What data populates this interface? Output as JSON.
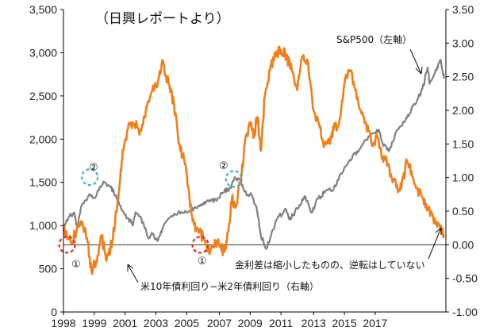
{
  "chart_data": {
    "type": "line",
    "source_note": "（日興レポートより）",
    "x_ticks": [
      "1998",
      "1999",
      "2001",
      "2003",
      "2005",
      "2007",
      "2009",
      "2011",
      "2013",
      "2015",
      "2017"
    ],
    "x_tick_years": [
      1998,
      1999.7,
      2001.4,
      2003.1,
      2004.8,
      2006.6,
      2008.3,
      2010.0,
      2011.8,
      2013.5,
      2015.2
    ],
    "left_axis": {
      "min": 0,
      "max": 3500,
      "ticks": [
        "0",
        "500",
        "1,000",
        "1,500",
        "2,000",
        "2,500",
        "3,000",
        "3,500"
      ]
    },
    "right_axis": {
      "min": -1.0,
      "max": 3.5,
      "ticks": [
        "-1.00",
        "-0.50",
        "0.00",
        "0.50",
        "1.00",
        "1.50",
        "2.00",
        "2.50",
        "3.00",
        "3.50"
      ]
    },
    "x_range": [
      1998,
      2019.1
    ],
    "series": [
      {
        "name": "S&P500（左軸）",
        "axis": "left",
        "color": "#808080",
        "points": [
          [
            1998.0,
            960
          ],
          [
            1998.3,
            1100
          ],
          [
            1998.6,
            1150
          ],
          [
            1998.75,
            980
          ],
          [
            1999.0,
            1230
          ],
          [
            1999.4,
            1350
          ],
          [
            1999.7,
            1320
          ],
          [
            2000.0,
            1450
          ],
          [
            2000.25,
            1500
          ],
          [
            2000.6,
            1440
          ],
          [
            2000.9,
            1350
          ],
          [
            2001.2,
            1180
          ],
          [
            2001.6,
            1080
          ],
          [
            2001.8,
            1000
          ],
          [
            2002.0,
            1150
          ],
          [
            2002.4,
            1040
          ],
          [
            2002.7,
            850
          ],
          [
            2002.9,
            900
          ],
          [
            2003.2,
            820
          ],
          [
            2003.5,
            980
          ],
          [
            2003.9,
            1100
          ],
          [
            2004.3,
            1140
          ],
          [
            2004.8,
            1150
          ],
          [
            2005.2,
            1200
          ],
          [
            2005.6,
            1230
          ],
          [
            2006.0,
            1280
          ],
          [
            2006.4,
            1300
          ],
          [
            2006.8,
            1380
          ],
          [
            2007.2,
            1440
          ],
          [
            2007.5,
            1550
          ],
          [
            2007.8,
            1500
          ],
          [
            2008.1,
            1350
          ],
          [
            2008.4,
            1350
          ],
          [
            2008.7,
            1150
          ],
          [
            2008.9,
            870
          ],
          [
            2009.2,
            730
          ],
          [
            2009.5,
            930
          ],
          [
            2009.9,
            1110
          ],
          [
            2010.3,
            1180
          ],
          [
            2010.5,
            1070
          ],
          [
            2010.9,
            1200
          ],
          [
            2011.3,
            1340
          ],
          [
            2011.7,
            1150
          ],
          [
            2012.0,
            1310
          ],
          [
            2012.4,
            1380
          ],
          [
            2012.9,
            1420
          ],
          [
            2013.3,
            1600
          ],
          [
            2013.8,
            1760
          ],
          [
            2014.2,
            1860
          ],
          [
            2014.6,
            1980
          ],
          [
            2015.0,
            2060
          ],
          [
            2015.4,
            2110
          ],
          [
            2015.65,
            1920
          ],
          [
            2016.0,
            1880
          ],
          [
            2016.3,
            2060
          ],
          [
            2016.7,
            2160
          ],
          [
            2017.0,
            2280
          ],
          [
            2017.4,
            2400
          ],
          [
            2017.8,
            2580
          ],
          [
            2018.1,
            2830
          ],
          [
            2018.2,
            2640
          ],
          [
            2018.6,
            2800
          ],
          [
            2018.8,
            2920
          ],
          [
            2019.0,
            2700
          ]
        ]
      },
      {
        "name": "米10年債利回り−米2年債利回り（右軸）",
        "axis": "right",
        "color": "#F07F1A",
        "points": [
          [
            1998.0,
            0.2
          ],
          [
            1998.3,
            0.1
          ],
          [
            1998.5,
            0.05
          ],
          [
            1998.8,
            0.3
          ],
          [
            1999.0,
            0.35
          ],
          [
            1999.3,
            0.1
          ],
          [
            1999.55,
            -0.4
          ],
          [
            1999.8,
            -0.25
          ],
          [
            2000.1,
            0.1
          ],
          [
            2000.4,
            -0.2
          ],
          [
            2000.7,
            0.05
          ],
          [
            2000.9,
            0.5
          ],
          [
            2001.1,
            0.9
          ],
          [
            2001.3,
            1.4
          ],
          [
            2001.6,
            1.8
          ],
          [
            2001.9,
            1.8
          ],
          [
            2002.3,
            1.7
          ],
          [
            2002.6,
            2.05
          ],
          [
            2002.9,
            2.3
          ],
          [
            2003.2,
            2.4
          ],
          [
            2003.45,
            2.75
          ],
          [
            2003.8,
            2.4
          ],
          [
            2004.1,
            2.1
          ],
          [
            2004.4,
            1.5
          ],
          [
            2004.7,
            1.2
          ],
          [
            2004.95,
            0.7
          ],
          [
            2005.2,
            0.3
          ],
          [
            2005.5,
            0.2
          ],
          [
            2005.8,
            0.05
          ],
          [
            2006.1,
            -0.1
          ],
          [
            2006.4,
            0.05
          ],
          [
            2006.7,
            -0.05
          ],
          [
            2006.9,
            -0.1
          ],
          [
            2007.1,
            0.2
          ],
          [
            2007.3,
            0.7
          ],
          [
            2007.5,
            0.55
          ],
          [
            2007.8,
            1.0
          ],
          [
            2008.0,
            1.5
          ],
          [
            2008.3,
            1.8
          ],
          [
            2008.5,
            1.6
          ],
          [
            2008.7,
            1.9
          ],
          [
            2008.9,
            1.4
          ],
          [
            2009.1,
            2.2
          ],
          [
            2009.4,
            2.6
          ],
          [
            2009.7,
            2.8
          ],
          [
            2010.0,
            2.9
          ],
          [
            2010.3,
            2.8
          ],
          [
            2010.6,
            2.6
          ],
          [
            2010.9,
            2.3
          ],
          [
            2011.2,
            2.8
          ],
          [
            2011.5,
            2.7
          ],
          [
            2011.8,
            2.0
          ],
          [
            2012.1,
            1.8
          ],
          [
            2012.4,
            1.5
          ],
          [
            2012.7,
            1.5
          ],
          [
            2012.9,
            1.7
          ],
          [
            2013.2,
            1.8
          ],
          [
            2013.5,
            2.4
          ],
          [
            2013.8,
            2.6
          ],
          [
            2014.1,
            2.3
          ],
          [
            2014.4,
            2.0
          ],
          [
            2014.7,
            1.8
          ],
          [
            2015.0,
            1.5
          ],
          [
            2015.3,
            1.6
          ],
          [
            2015.6,
            1.3
          ],
          [
            2015.9,
            1.2
          ],
          [
            2016.2,
            0.95
          ],
          [
            2016.5,
            0.8
          ],
          [
            2016.75,
            1.0
          ],
          [
            2016.95,
            1.25
          ],
          [
            2017.2,
            1.1
          ],
          [
            2017.5,
            0.85
          ],
          [
            2017.8,
            0.7
          ],
          [
            2018.1,
            0.55
          ],
          [
            2018.4,
            0.4
          ],
          [
            2018.7,
            0.3
          ],
          [
            2019.0,
            0.15
          ]
        ]
      }
    ],
    "annotations": {
      "sp500_label": "S&P500（左軸）",
      "spread_label": "米10年債利回り−米2年債利回り（右軸）",
      "note": "金利差は縮小したものの、逆転はしていない",
      "marker_1": "①",
      "marker_2": "②"
    },
    "markers": [
      {
        "label": "①",
        "color": "#e02020",
        "axis": "right",
        "x": 1998.2,
        "y": 0.0
      },
      {
        "label": "①",
        "color": "#e02020",
        "axis": "right",
        "x": 2005.55,
        "y": 0.0
      },
      {
        "label": "②",
        "color": "#3bb0d8",
        "axis": "left",
        "x": 1999.45,
        "y": 1560
      },
      {
        "label": "②",
        "color": "#3bb0d8",
        "axis": "left",
        "x": 2007.4,
        "y": 1540
      }
    ]
  }
}
